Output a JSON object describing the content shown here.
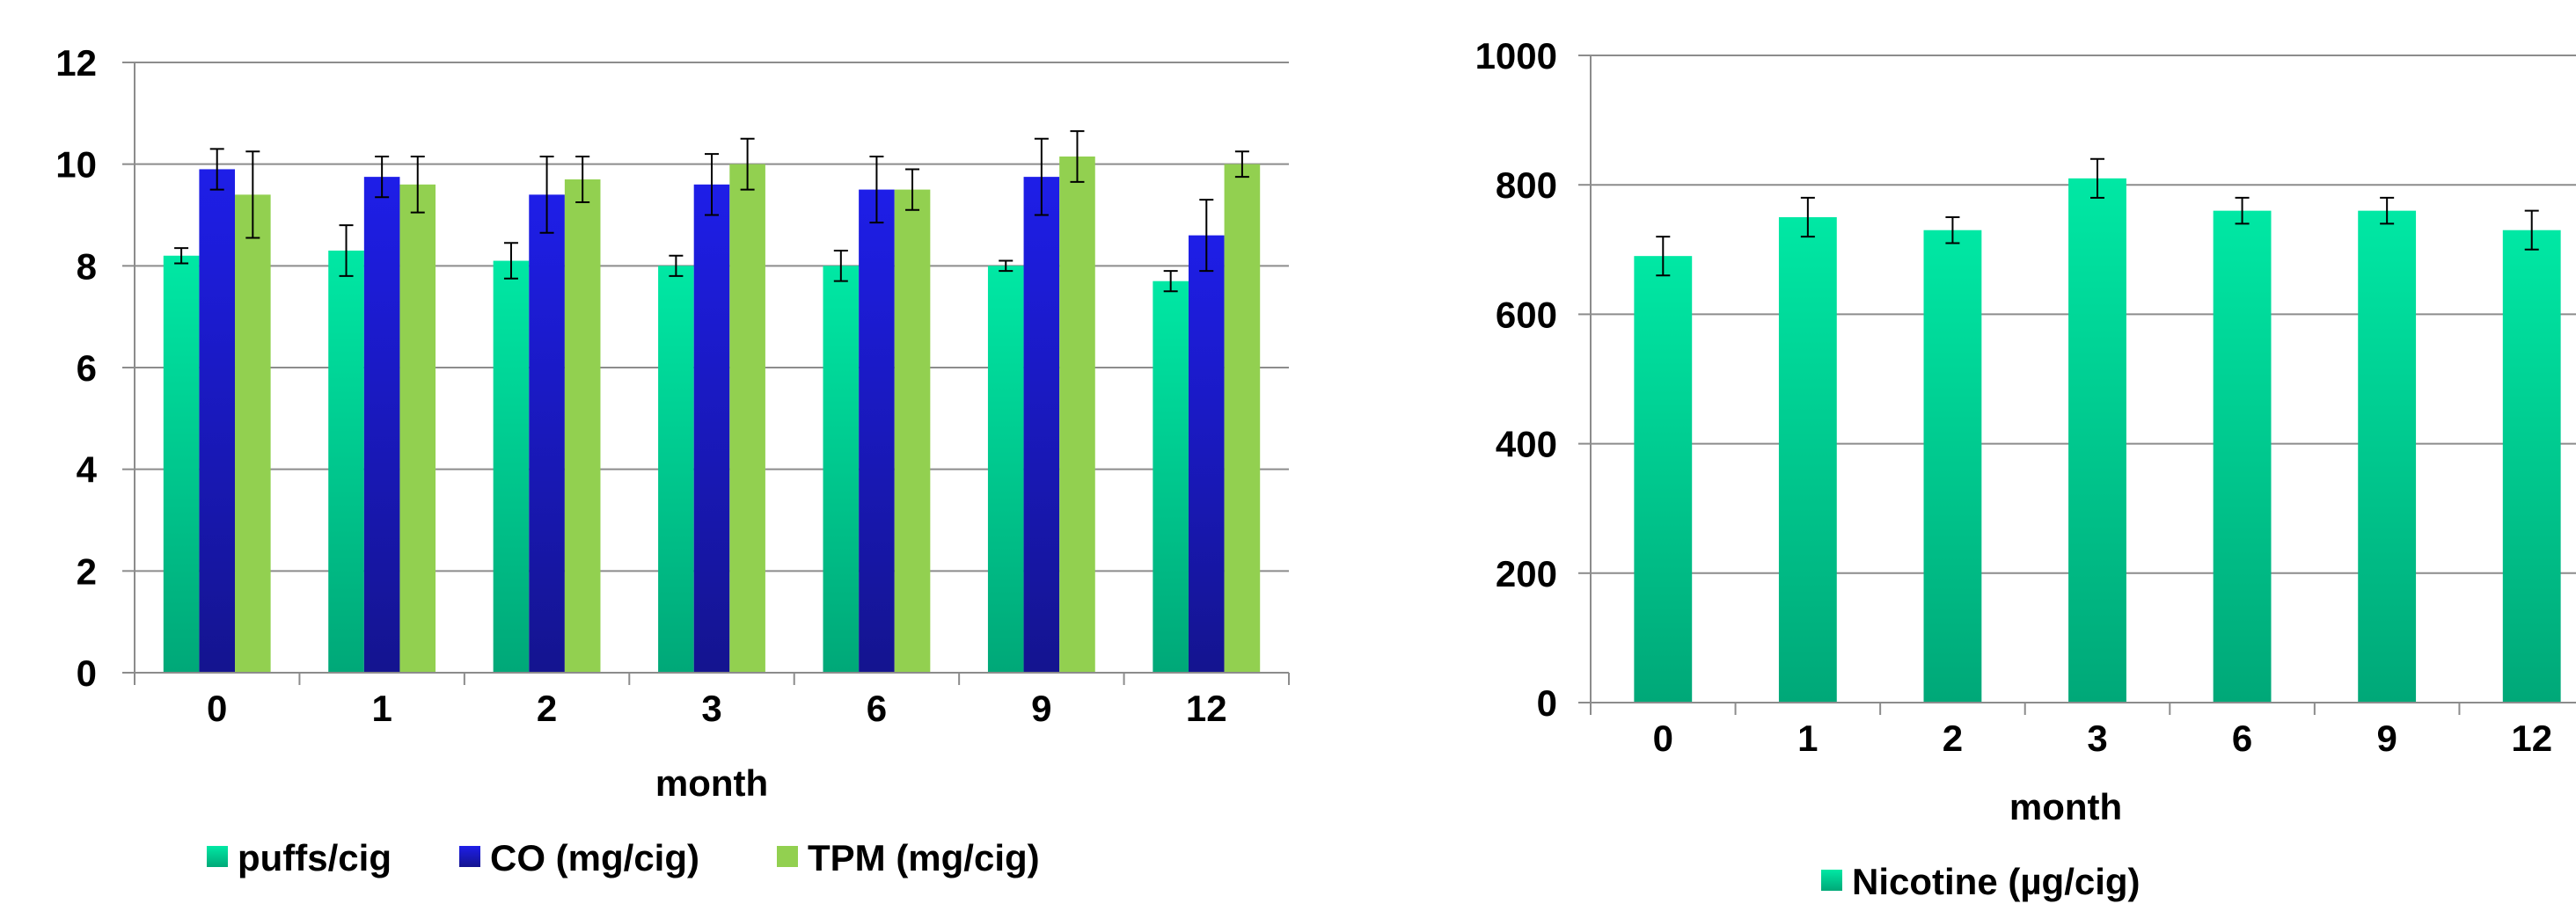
{
  "chart_data": [
    {
      "type": "bar",
      "title": "",
      "xlabel": "month",
      "ylabel": "",
      "ylim": [
        0,
        12
      ],
      "yticks": [
        0,
        2,
        4,
        6,
        8,
        10,
        12
      ],
      "grid": true,
      "legend_position": "bottom",
      "categories": [
        "0",
        "1",
        "2",
        "3",
        "6",
        "9",
        "12"
      ],
      "series": [
        {
          "name": "puffs/cig",
          "color": "#00e5a0",
          "values": [
            8.2,
            8.3,
            8.1,
            8.0,
            8.0,
            8.0,
            7.7
          ],
          "errors": [
            0.15,
            0.5,
            0.35,
            0.2,
            0.3,
            0.1,
            0.2
          ]
        },
        {
          "name": "CO (mg/cig)",
          "color": "#1a1ae6",
          "values": [
            9.9,
            9.75,
            9.4,
            9.6,
            9.5,
            9.75,
            8.6
          ],
          "errors": [
            0.4,
            0.4,
            0.75,
            0.6,
            0.65,
            0.75,
            0.7
          ]
        },
        {
          "name": "TPM (mg/cig)",
          "color": "#92d050",
          "values": [
            9.4,
            9.6,
            9.7,
            10.0,
            9.5,
            10.15,
            10.0
          ],
          "errors": [
            0.85,
            0.55,
            0.45,
            0.5,
            0.4,
            0.5,
            0.25
          ]
        }
      ]
    },
    {
      "type": "bar",
      "title": "",
      "xlabel": "month",
      "ylabel": "",
      "ylim": [
        0,
        1000
      ],
      "yticks": [
        0,
        200,
        400,
        600,
        800,
        1000
      ],
      "grid": true,
      "legend_position": "bottom",
      "categories": [
        "0",
        "1",
        "2",
        "3",
        "6",
        "9",
        "12"
      ],
      "series": [
        {
          "name": "Nicotine (µg/cig)",
          "color": "#00e5a0",
          "values": [
            690,
            750,
            730,
            810,
            760,
            760,
            730
          ],
          "errors": [
            30,
            30,
            20,
            30,
            20,
            20,
            30
          ]
        }
      ]
    }
  ]
}
